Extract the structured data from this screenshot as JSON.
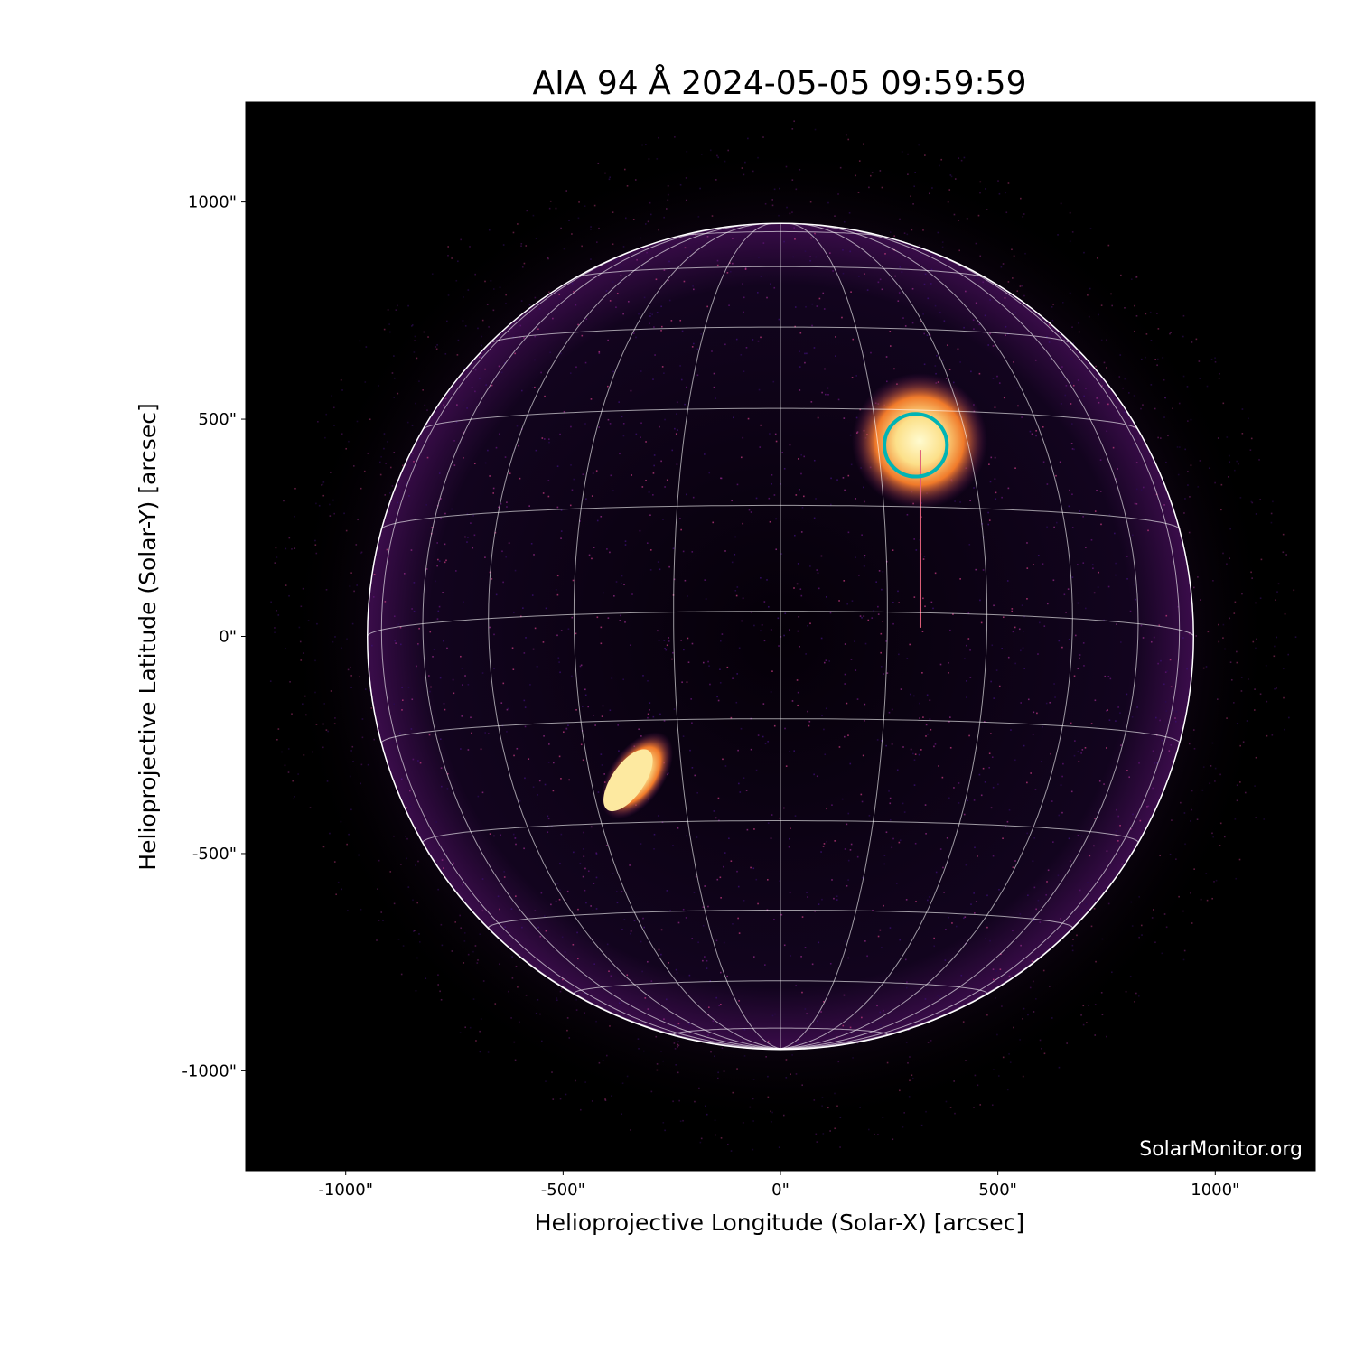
{
  "chart_data": {
    "type": "heatmap",
    "title": "AIA 94 Å 2024-05-05 09:59:59",
    "xlabel": "Helioprojective Longitude (Solar-X) [arcsec]",
    "ylabel": "Helioprojective Latitude (Solar-Y) [arcsec]",
    "xlim": [
      -1230,
      1230
    ],
    "ylim": [
      -1230,
      1230
    ],
    "x_ticks": [
      {
        "value": -1000,
        "label": "-1000\""
      },
      {
        "value": -500,
        "label": "-500\""
      },
      {
        "value": 0,
        "label": "0\""
      },
      {
        "value": 500,
        "label": "500\""
      },
      {
        "value": 1000,
        "label": "1000\""
      }
    ],
    "y_ticks": [
      {
        "value": 1000,
        "label": "1000\""
      },
      {
        "value": 500,
        "label": "500\""
      },
      {
        "value": 0,
        "label": "0\""
      },
      {
        "value": -500,
        "label": "-500\""
      },
      {
        "value": -1000,
        "label": "-1000\""
      }
    ],
    "colormap": "inferno-like",
    "solar_radius_arcsec": 950,
    "grid": {
      "heliographic_spacing_deg": 15,
      "b0_deg": -3.5,
      "color": "#ffffff"
    },
    "highlight_circle": {
      "x": 311,
      "y": 440,
      "radius": 72,
      "color": "#00b4b4"
    },
    "bright_regions": [
      {
        "x": 320,
        "y": 450
      },
      {
        "x": -330,
        "y": -320
      }
    ],
    "watermark": "SolarMonitor.org"
  }
}
